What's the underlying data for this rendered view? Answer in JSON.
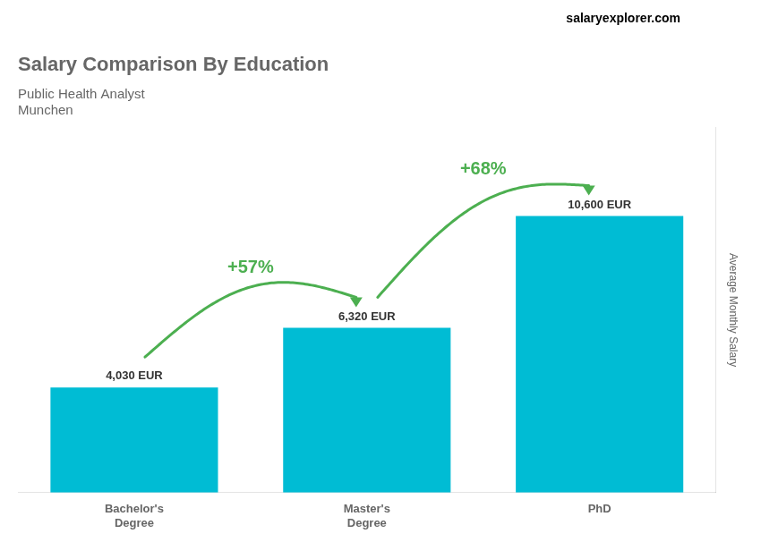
{
  "chart_data": {
    "type": "bar",
    "title": "Salary Comparison By Education",
    "subtitle": [
      "Public Health Analyst",
      "Munchen"
    ],
    "ylabel": "Average Monthly Salary",
    "annotations": [
      {
        "text": "salaryexplorer.com"
      },
      {
        "text": "+57%",
        "between": [
          0,
          1
        ]
      },
      {
        "text": "+68%",
        "between": [
          1,
          2
        ]
      }
    ],
    "categories": [
      "Bachelor's\nDegree",
      "Master's\nDegree",
      "PhD"
    ],
    "values": [
      4030,
      6320,
      10600
    ],
    "value_labels": [
      "4,030 EUR",
      "6,320 EUR",
      "10,600 EUR"
    ],
    "data_labels": true,
    "color": "#00bcd4",
    "ylim": [
      0,
      14000
    ],
    "tick_labels": "x",
    "grid": false
  }
}
